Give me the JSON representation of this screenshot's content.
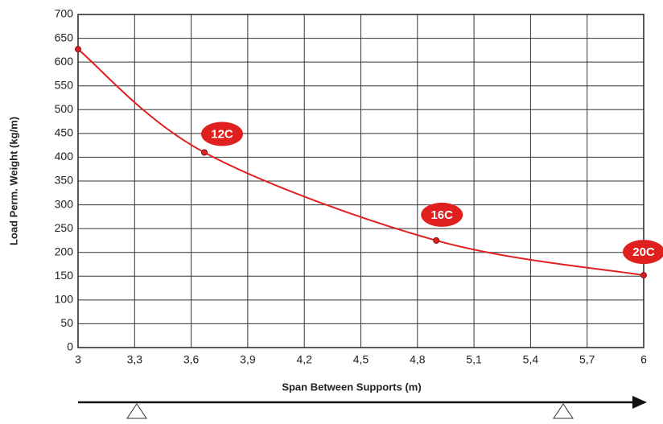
{
  "chart_data": {
    "type": "line",
    "xlabel": "Span Between Supports (m)",
    "ylabel": "Load Perm. Weight (kg/m)",
    "x": [
      3,
      3.67,
      4.9,
      6
    ],
    "series": [
      {
        "color": "#e0201f",
        "values": [
          627,
          410,
          225,
          152
        ]
      }
    ],
    "point_labels": [
      null,
      "12C",
      "16C",
      "20C"
    ],
    "xlim": [
      3,
      6
    ],
    "xticks": [
      3,
      {
        "value": 3.3,
        "label": "3,3"
      },
      {
        "value": 3.6,
        "label": "3,6"
      },
      {
        "value": 3.9,
        "label": "3,9"
      },
      {
        "value": 4.2,
        "label": "4,2"
      },
      {
        "value": 4.5,
        "label": "4,5"
      },
      {
        "value": 4.8,
        "label": "4,8"
      },
      {
        "value": 5.1,
        "label": "5,1"
      },
      {
        "value": 5.4,
        "label": "5,4"
      },
      {
        "value": 5.7,
        "label": "5,7"
      },
      6
    ],
    "ylim": [
      0,
      700
    ],
    "yticks": [
      0,
      50,
      100,
      150,
      200,
      250,
      300,
      350,
      400,
      450,
      500,
      550,
      600,
      650,
      700
    ],
    "grid": true
  }
}
